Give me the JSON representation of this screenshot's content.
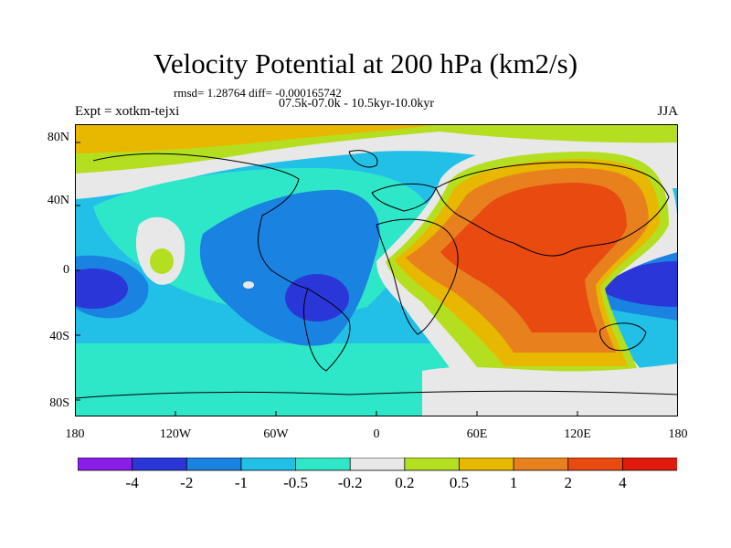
{
  "title": "Velocity Potential at 200 hPa (km2/s)",
  "rmsd_text": "rmsd= 1.28764 diff= -0.000165742",
  "subtitle": "07.5k-07.0k - 10.5kyr-10.0kyr",
  "left_label": "Expt = xotkm-tejxi",
  "right_label": "JJA",
  "map": {
    "type": "filled-contour",
    "projection": "cylindrical-equidistant",
    "lon_range": [
      -180,
      180
    ],
    "lat_range": [
      -90,
      90
    ],
    "y_ticks": [
      "80N",
      "40N",
      "0",
      "40S",
      "80S"
    ],
    "x_ticks": [
      "180",
      "120W",
      "60W",
      "0",
      "60E",
      "120E",
      "180"
    ]
  },
  "colorbar": {
    "labels": [
      "-4",
      "-2",
      "-1",
      "-0.5",
      "-0.2",
      "0.2",
      "0.5",
      "1",
      "2",
      "4"
    ],
    "colors": [
      "#8c1ce8",
      "#2b36d9",
      "#1a82e0",
      "#22c0e6",
      "#2ee6c8",
      "#e8e8e8",
      "#b4df20",
      "#e8b800",
      "#e8801e",
      "#e84a10",
      "#e01a0c"
    ]
  }
}
